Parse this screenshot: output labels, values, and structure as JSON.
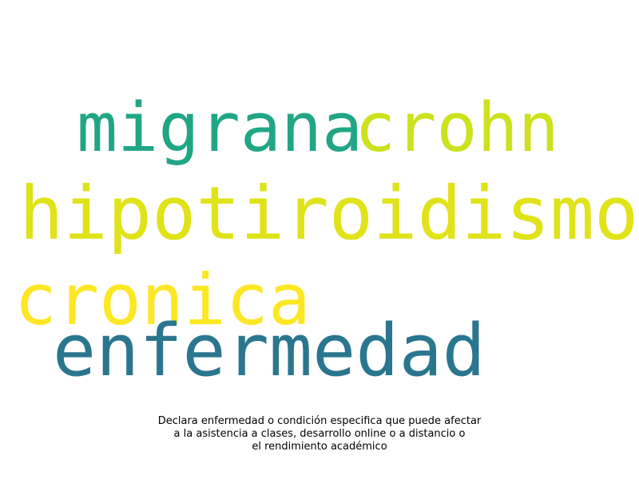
{
  "wordcloud": {
    "words": [
      {
        "text": "migrana",
        "color": "#21a685"
      },
      {
        "text": "crohn",
        "color": "#cde11d"
      },
      {
        "text": "hipotiroidismo",
        "color": "#dfe318"
      },
      {
        "text": "cronica",
        "color": "#fde725"
      },
      {
        "text": "enfermedad",
        "color": "#2a768e"
      }
    ]
  },
  "caption": {
    "line1": "Declara enfermedad o condición especifica que puede afectar",
    "line2": "a la asistencia a clases, desarrollo online o a distancio o",
    "line3": "el rendimiento académico"
  }
}
